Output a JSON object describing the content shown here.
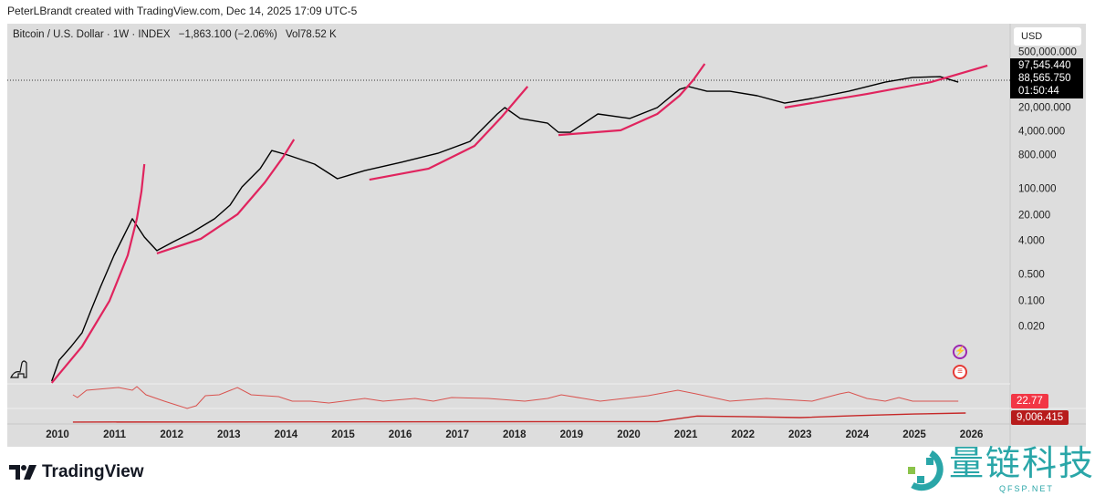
{
  "header": {
    "attribution": "PeterLBrandt created with TradingView.com, Dec 14, 2025 17:09 UTC-5"
  },
  "legend": {
    "symbol": "Bitcoin / U.S. Dollar · 1W · INDEX",
    "change": "−1,863.100 (−2.06%)",
    "volume": "Vol78.52 K"
  },
  "price_axis": {
    "currency": "USD",
    "last_price_a": "97,545.440",
    "last_price_b": "88,565.750",
    "countdown": "01:50:44"
  },
  "indicators": {
    "value_1": "22.77",
    "value_2": "9,006.415"
  },
  "branding": {
    "logo_text": "TradingView",
    "watermark": "量链科技",
    "watermark_sub": "QFSP.NET"
  },
  "colors": {
    "background": "#dddddd",
    "price": "#000000",
    "curves": "#e0245e",
    "indicator": "#d9534f",
    "badge1": "#f23645",
    "badge2": "#b71c1c",
    "watermark": "#2aa6a8"
  },
  "chart_data": {
    "type": "line",
    "title": "Bitcoin / U.S. Dollar · 1W · INDEX",
    "xlabel": "",
    "ylabel": "USD",
    "yscale": "log",
    "x_ticks": [
      "2010",
      "2011",
      "2012",
      "2013",
      "2014",
      "2015",
      "2016",
      "2017",
      "2018",
      "2019",
      "2020",
      "2021",
      "2022",
      "2023",
      "2024",
      "2025",
      "2026"
    ],
    "y_ticks": [
      "500,000.000",
      "20,000.000",
      "4,000.000",
      "800.000",
      "100.000",
      "20.000",
      "4.000",
      "0.500",
      "0.100",
      "0.020"
    ],
    "xlim": [
      2009.8,
      2026.6
    ],
    "series": [
      {
        "name": "price",
        "points": [
          [
            2009.9,
            -3.88
          ],
          [
            2010.03,
            -3.03
          ],
          [
            2010.24,
            -2.48
          ],
          [
            2010.43,
            -1.93
          ],
          [
            2010.59,
            -1.0
          ],
          [
            2010.75,
            -0.08
          ],
          [
            2010.99,
            1.21
          ],
          [
            2011.15,
            1.95
          ],
          [
            2011.31,
            2.69
          ],
          [
            2011.52,
            1.95
          ],
          [
            2011.74,
            1.4
          ],
          [
            2012.03,
            1.76
          ],
          [
            2012.35,
            2.13
          ],
          [
            2012.75,
            2.69
          ],
          [
            2013.02,
            3.24
          ],
          [
            2013.23,
            3.98
          ],
          [
            2013.55,
            4.72
          ],
          [
            2013.75,
            5.45
          ],
          [
            2014.03,
            5.27
          ],
          [
            2014.5,
            4.9
          ],
          [
            2014.9,
            4.31
          ],
          [
            2015.38,
            4.64
          ],
          [
            2016.02,
            4.98
          ],
          [
            2016.66,
            5.34
          ],
          [
            2017.22,
            5.82
          ],
          [
            2017.7,
            6.93
          ],
          [
            2017.83,
            7.19
          ],
          [
            2018.1,
            6.75
          ],
          [
            2018.58,
            6.56
          ],
          [
            2018.77,
            6.19
          ],
          [
            2018.98,
            6.19
          ],
          [
            2019.46,
            6.93
          ],
          [
            2020.02,
            6.75
          ],
          [
            2020.5,
            7.19
          ],
          [
            2020.89,
            7.93
          ],
          [
            2021.05,
            8.04
          ],
          [
            2021.37,
            7.85
          ],
          [
            2021.77,
            7.85
          ],
          [
            2022.25,
            7.67
          ],
          [
            2022.73,
            7.37
          ],
          [
            2023.21,
            7.56
          ],
          [
            2023.85,
            7.85
          ],
          [
            2024.49,
            8.22
          ],
          [
            2024.97,
            8.41
          ],
          [
            2025.45,
            8.44
          ],
          [
            2025.77,
            8.22
          ]
        ]
      },
      {
        "name": "parabolic-curve-1",
        "points": [
          [
            2009.9,
            -3.95
          ],
          [
            2010.43,
            -2.48
          ],
          [
            2010.91,
            -0.63
          ],
          [
            2011.23,
            1.21
          ],
          [
            2011.39,
            2.69
          ],
          [
            2011.47,
            3.79
          ],
          [
            2011.52,
            4.9
          ]
        ]
      },
      {
        "name": "parabolic-curve-2",
        "points": [
          [
            2011.74,
            1.29
          ],
          [
            2012.51,
            1.88
          ],
          [
            2013.15,
            2.87
          ],
          [
            2013.63,
            4.16
          ],
          [
            2013.95,
            5.19
          ],
          [
            2014.14,
            5.9
          ]
        ]
      },
      {
        "name": "parabolic-curve-3",
        "points": [
          [
            2015.46,
            4.27
          ],
          [
            2016.5,
            4.72
          ],
          [
            2017.3,
            5.64
          ],
          [
            2017.78,
            6.82
          ],
          [
            2018.23,
            8.04
          ]
        ]
      },
      {
        "name": "parabolic-curve-4",
        "points": [
          [
            2018.77,
            6.08
          ],
          [
            2019.86,
            6.27
          ],
          [
            2020.5,
            6.93
          ],
          [
            2020.89,
            7.67
          ],
          [
            2021.13,
            8.3
          ],
          [
            2021.33,
            8.96
          ]
        ]
      },
      {
        "name": "parabolic-curve-5",
        "points": [
          [
            2022.73,
            7.19
          ],
          [
            2024.17,
            7.74
          ],
          [
            2025.29,
            8.22
          ],
          [
            2026.28,
            8.89
          ]
        ]
      }
    ],
    "indicator_1": [
      [
        2010.27,
        31.5
      ],
      [
        2010.35,
        27.8
      ],
      [
        2010.51,
        37.8
      ],
      [
        2011.07,
        41.5
      ],
      [
        2011.31,
        37.8
      ],
      [
        2011.39,
        42.8
      ],
      [
        2011.55,
        31.5
      ],
      [
        2011.87,
        22.8
      ],
      [
        2012.27,
        12.8
      ],
      [
        2012.43,
        16.5
      ],
      [
        2012.59,
        30.3
      ],
      [
        2012.83,
        31.5
      ],
      [
        2013.15,
        41.5
      ],
      [
        2013.39,
        31.5
      ],
      [
        2013.87,
        29.0
      ],
      [
        2014.11,
        22.8
      ],
      [
        2014.43,
        22.8
      ],
      [
        2014.75,
        20.3
      ],
      [
        2015.38,
        26.5
      ],
      [
        2015.7,
        22.8
      ],
      [
        2016.26,
        26.5
      ],
      [
        2016.58,
        22.8
      ],
      [
        2016.9,
        27.8
      ],
      [
        2017.54,
        26.5
      ],
      [
        2018.18,
        22.8
      ],
      [
        2018.58,
        26.5
      ],
      [
        2018.82,
        31.5
      ],
      [
        2019.5,
        22.8
      ],
      [
        2020.34,
        30.3
      ],
      [
        2020.86,
        37.8
      ],
      [
        2021.18,
        32.8
      ],
      [
        2021.77,
        22.8
      ],
      [
        2022.41,
        26.5
      ],
      [
        2023.21,
        22.8
      ],
      [
        2023.69,
        32.8
      ],
      [
        2023.85,
        35.3
      ],
      [
        2024.17,
        26.5
      ],
      [
        2024.49,
        22.8
      ],
      [
        2024.73,
        27.8
      ],
      [
        2024.97,
        22.8
      ],
      [
        2025.77,
        22.77
      ]
    ],
    "indicator_2": [
      [
        2010.27,
        100
      ],
      [
        2020.5,
        500
      ],
      [
        2021.2,
        6000
      ],
      [
        2022.0,
        5500
      ],
      [
        2023.0,
        4500
      ],
      [
        2024.0,
        6500
      ],
      [
        2025.0,
        8000
      ],
      [
        2025.9,
        9006.415
      ]
    ]
  }
}
